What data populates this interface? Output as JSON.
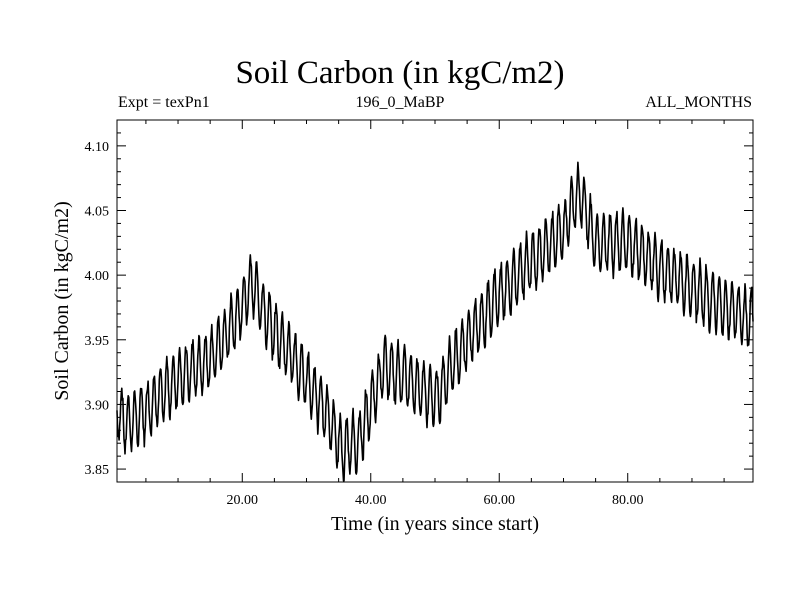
{
  "chart_data": {
    "type": "line",
    "title": "Soil Carbon (in kgC/m2)",
    "subtitle_left": "Expt = texPn1",
    "subtitle_center": "196_0_MaBP",
    "subtitle_right": "ALL_MONTHS",
    "xlabel": "Time (in years since start)",
    "ylabel": "Soil Carbon (in kgC/m2)",
    "xlim": [
      0.5,
      99.5
    ],
    "ylim": [
      3.84,
      4.12
    ],
    "xticks": [
      20,
      40,
      60,
      80
    ],
    "xtick_labels": [
      "20.00",
      "40.00",
      "60.00",
      "80.00"
    ],
    "yticks": [
      3.85,
      3.9,
      3.95,
      4.0,
      4.05,
      4.1
    ],
    "ytick_labels": [
      "3.85",
      "3.90",
      "3.95",
      "4.00",
      "4.05",
      "4.10"
    ],
    "grid": false,
    "seasonal_amplitude": 0.022,
    "series": [
      {
        "color": "#000000",
        "sampling": "monthly",
        "trend_years": [
          0.5,
          2,
          5,
          10,
          15,
          19,
          21.5,
          24,
          28,
          33,
          35.5,
          38,
          42,
          47,
          50,
          55,
          60,
          65,
          70,
          72.5,
          75,
          80,
          85,
          90,
          95,
          99.5
        ],
        "trend_values": [
          3.895,
          3.885,
          3.895,
          3.92,
          3.935,
          3.965,
          3.995,
          3.965,
          3.935,
          3.895,
          3.865,
          3.87,
          3.93,
          3.915,
          3.905,
          3.95,
          3.985,
          4.01,
          4.035,
          4.065,
          4.025,
          4.025,
          4.005,
          3.99,
          3.975,
          3.965
        ]
      }
    ]
  }
}
